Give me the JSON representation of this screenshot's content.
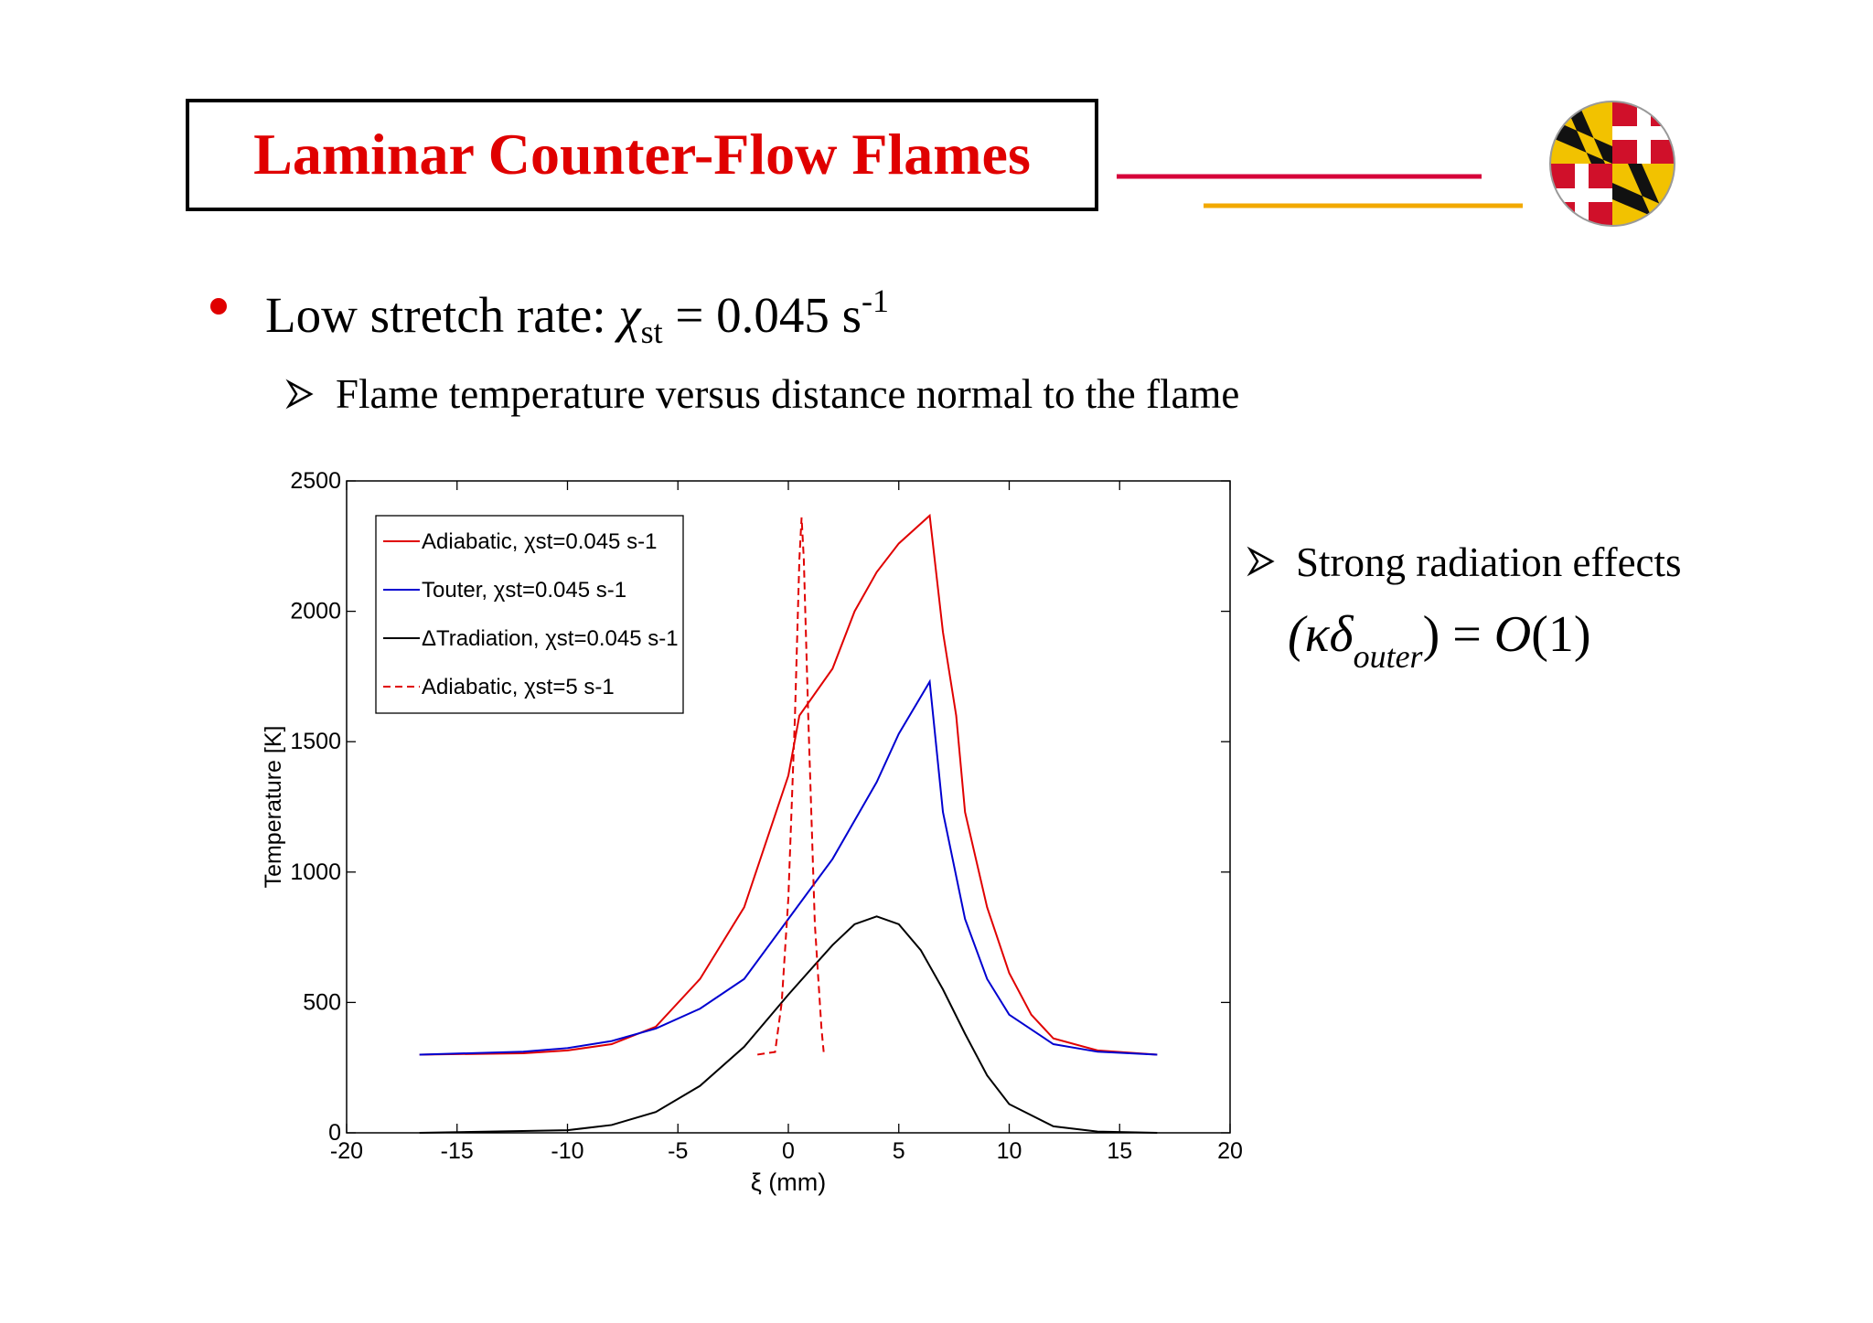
{
  "slide": {
    "title": "Laminar Counter-Flow Flames",
    "bullet": [
      "Low stretch rate: ",
      "χ",
      "st",
      " = 0.045 s",
      "-1"
    ],
    "sub_bullet": "Flame temperature versus distance normal to the flame",
    "side_bullet": "Strong radiation effects",
    "formula": [
      "(κδ",
      "outer",
      ") = ",
      "O",
      "(1)"
    ]
  },
  "chart_data": {
    "type": "line",
    "x_label": "ξ (mm)",
    "y_label": "Temperature [K]",
    "xlim": [
      -20,
      20
    ],
    "xticks": [
      -20,
      -15,
      -10,
      -5,
      0,
      5,
      10,
      15,
      20
    ],
    "ylim": [
      0,
      2500
    ],
    "yticks": [
      0,
      500,
      1000,
      1500,
      2000,
      2500
    ],
    "grid": false,
    "legend": "upper left",
    "series": [
      {
        "name": "Adiabatic, χst=0.045 s-1",
        "color": "#e00000",
        "dashed": false,
        "x": [
          -16.7,
          -12,
          -10,
          -8,
          -6,
          -4,
          -2,
          0,
          0.5,
          2,
          3,
          4,
          5,
          6.4,
          7,
          7.6,
          8,
          9,
          10,
          11,
          12,
          14,
          16.7
        ],
        "values": [
          300,
          305,
          316,
          340,
          407,
          590,
          865,
          1370,
          1600,
          1780,
          2000,
          2150,
          2260,
          2367,
          1920,
          1600,
          1230,
          865,
          613,
          453,
          362,
          316,
          300
        ]
      },
      {
        "name": "Touter, χst=0.045 s-1",
        "color": "#0000d0",
        "dashed": false,
        "x": [
          -16.7,
          -12,
          -10,
          -8,
          -6,
          -4,
          -2,
          0,
          2,
          4,
          5,
          6.4,
          7,
          8,
          9,
          10,
          12,
          14,
          16.7
        ],
        "values": [
          300,
          311,
          325,
          352,
          400,
          476,
          590,
          820,
          1050,
          1345,
          1530,
          1730,
          1230,
          820,
          590,
          453,
          340,
          311,
          300
        ]
      },
      {
        "name": "ΔTradiation, χst=0.045 s-1",
        "color": "#000000",
        "dashed": false,
        "x": [
          -16.7,
          -10,
          -8,
          -6,
          -4,
          -2,
          0,
          2,
          3,
          4,
          5,
          6,
          7,
          8,
          9,
          10,
          12,
          14,
          16.7
        ],
        "values": [
          0,
          10,
          30,
          80,
          180,
          330,
          530,
          720,
          800,
          830,
          800,
          700,
          550,
          380,
          220,
          110,
          25,
          5,
          0
        ]
      },
      {
        "name": "Adiabatic, χst=5 s-1",
        "color": "#e00000",
        "dashed": true,
        "x": [
          -1.4,
          -0.6,
          -0.3,
          0,
          0.3,
          0.5,
          0.6,
          0.7,
          0.9,
          1.2,
          1.5,
          1.6
        ],
        "values": [
          300,
          310,
          500,
          900,
          1600,
          2200,
          2360,
          2200,
          1600,
          800,
          400,
          310
        ]
      }
    ]
  }
}
